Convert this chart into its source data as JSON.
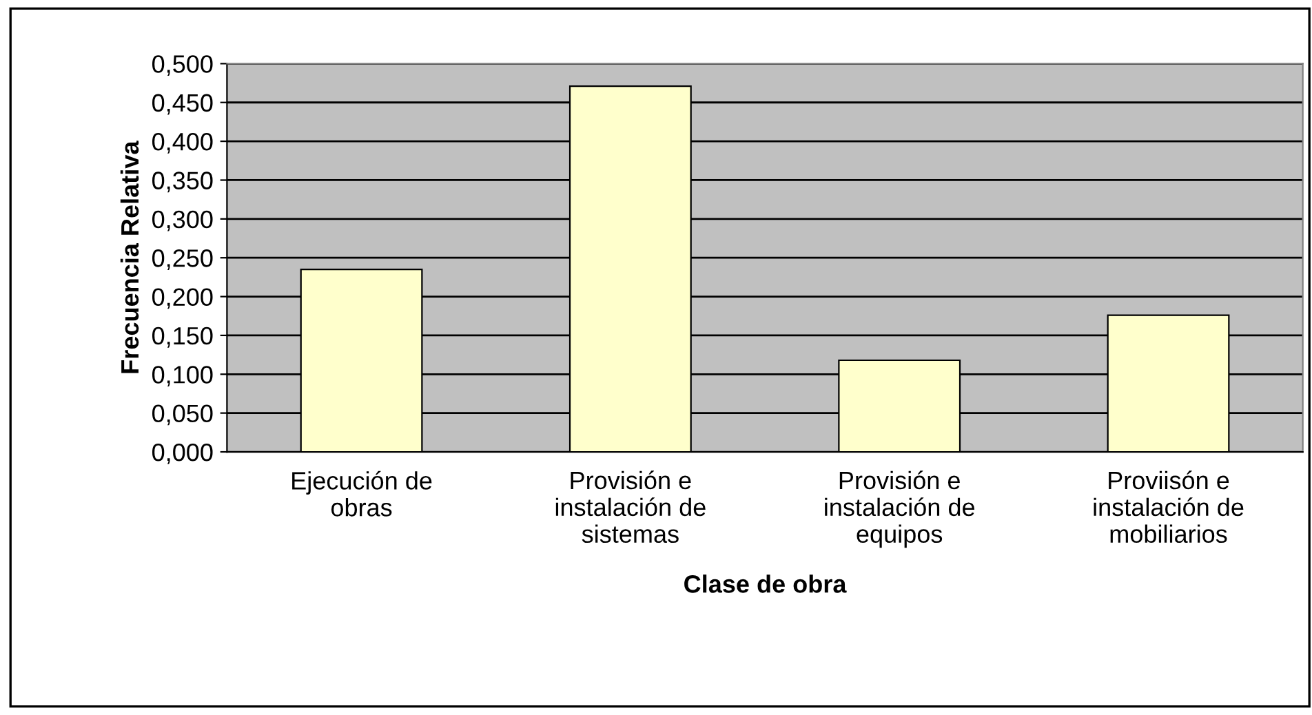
{
  "chart_data": {
    "type": "bar",
    "xlabel": "Clase de obra",
    "ylabel": "Frecuencia Relativa",
    "categories": [
      "Ejecución de\nobras",
      "Provisión e\ninstalación de\nsistemas",
      "Provisión e\ninstalación de\nequipos",
      "Proviisón e\ninstalación de\nmobiliarios"
    ],
    "values": [
      0.235,
      0.471,
      0.118,
      0.176
    ],
    "color": "#ffffcc",
    "ylim": [
      0,
      0.5
    ],
    "yticks": [
      {
        "value": 0,
        "label": "0,000"
      },
      {
        "value": 0.05,
        "label": "0,050"
      },
      {
        "value": 0.1,
        "label": "0,100"
      },
      {
        "value": 0.15,
        "label": "0,150"
      },
      {
        "value": 0.2,
        "label": "0,200"
      },
      {
        "value": 0.25,
        "label": "0,250"
      },
      {
        "value": 0.3,
        "label": "0,300"
      },
      {
        "value": 0.35,
        "label": "0,350"
      },
      {
        "value": 0.4,
        "label": "0,400"
      },
      {
        "value": 0.45,
        "label": "0,450"
      },
      {
        "value": 0.5,
        "label": "0,500"
      }
    ],
    "grid": "y",
    "legend": false
  }
}
